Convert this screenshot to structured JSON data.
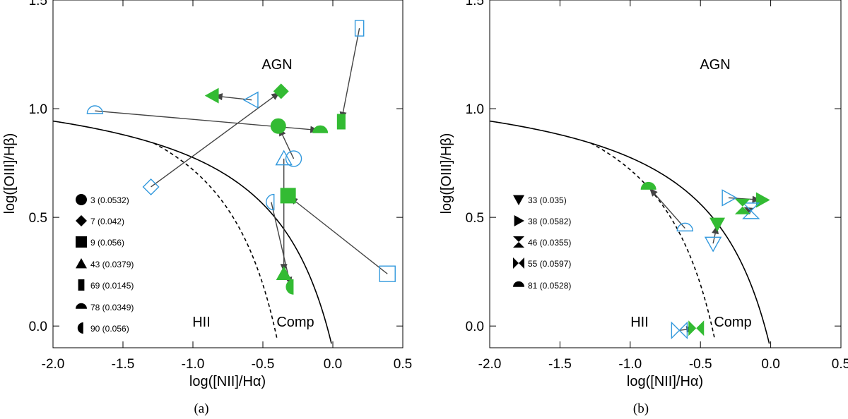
{
  "chart_data": [
    {
      "type": "scatter",
      "panel_label": "(a)",
      "xlabel": "log([NII]/Hα)",
      "ylabel": "log([OIII]/Hβ)",
      "xlim": [
        -2.0,
        0.5
      ],
      "ylim": [
        -0.1,
        1.5
      ],
      "xticks": [
        "-2.0",
        "-1.5",
        "-1.0",
        "-0.5",
        "0.0",
        "0.5"
      ],
      "yticks": [
        "0.0",
        "0.5",
        "1.0",
        "1.5"
      ],
      "region_labels": [
        "AGN",
        "HII",
        "Comp"
      ],
      "colors": {
        "from": "#3399dd",
        "to": "#33bb33",
        "arrow": "#444444"
      },
      "legend": [
        {
          "marker": "circle",
          "label": "3 (0.0532)"
        },
        {
          "marker": "diamond",
          "label": "7 (0.042)"
        },
        {
          "marker": "square",
          "label": "9 (0.056)"
        },
        {
          "marker": "triangle-up",
          "label": "43 (0.0379)"
        },
        {
          "marker": "rect-tall",
          "label": "69 (0.0145)"
        },
        {
          "marker": "half-top",
          "label": "78 (0.0349)"
        },
        {
          "marker": "half-left",
          "label": "90 (0.056)"
        }
      ],
      "objects": [
        {
          "id": "3",
          "marker": "circle",
          "from": [
            -0.28,
            0.77
          ],
          "to": [
            -0.39,
            0.92
          ]
        },
        {
          "id": "7",
          "marker": "diamond",
          "from": [
            -1.3,
            0.64
          ],
          "to": [
            -0.37,
            1.08
          ]
        },
        {
          "id": "9",
          "marker": "square",
          "from": [
            0.39,
            0.24
          ],
          "to": [
            -0.32,
            0.6
          ]
        },
        {
          "id": "43",
          "marker": "triangle-up",
          "from": [
            -0.35,
            0.77
          ],
          "to": [
            -0.35,
            0.24
          ]
        },
        {
          "id": "69",
          "marker": "rect-tall",
          "from": [
            0.19,
            1.37
          ],
          "to": [
            0.06,
            0.94
          ]
        },
        {
          "id": "78",
          "marker": "half-top",
          "from": [
            -1.7,
            0.99
          ],
          "to": [
            -0.09,
            0.9
          ]
        },
        {
          "id": "90",
          "marker": "half-left",
          "from": [
            -0.44,
            0.57
          ],
          "to": [
            -0.3,
            0.18
          ]
        },
        {
          "id": "extra",
          "marker": "triangle-left",
          "from": [
            -0.58,
            1.04
          ],
          "to": [
            -0.86,
            1.06
          ]
        }
      ]
    },
    {
      "type": "scatter",
      "panel_label": "(b)",
      "xlabel": "log([NII]/Hα)",
      "ylabel": "log([OIII]/Hβ)",
      "xlim": [
        -2.0,
        0.5
      ],
      "ylim": [
        -0.1,
        1.5
      ],
      "xticks": [
        "-2.0",
        "-1.5",
        "-1.0",
        "-0.5",
        "0.0",
        "0.5"
      ],
      "yticks": [
        "0.0",
        "0.5",
        "1.0",
        "1.5"
      ],
      "region_labels": [
        "AGN",
        "HII",
        "Comp"
      ],
      "colors": {
        "from": "#3399dd",
        "to": "#33bb33",
        "arrow": "#444444"
      },
      "legend": [
        {
          "marker": "triangle-down",
          "label": "33 (0.035)"
        },
        {
          "marker": "triangle-right",
          "label": "38 (0.0582)"
        },
        {
          "marker": "hourglass",
          "label": "46 (0.0355)"
        },
        {
          "marker": "bowtie",
          "label": "55 (0.0597)"
        },
        {
          "marker": "half-top",
          "label": "81 (0.0528)"
        }
      ],
      "objects": [
        {
          "id": "33",
          "marker": "triangle-down",
          "from": [
            -0.41,
            0.38
          ],
          "to": [
            -0.38,
            0.47
          ]
        },
        {
          "id": "38",
          "marker": "triangle-right",
          "from": [
            -0.3,
            0.59
          ],
          "to": [
            -0.06,
            0.58
          ]
        },
        {
          "id": "46",
          "marker": "hourglass",
          "from": [
            -0.14,
            0.53
          ],
          "to": [
            -0.2,
            0.55
          ]
        },
        {
          "id": "55",
          "marker": "bowtie",
          "from": [
            -0.65,
            -0.02
          ],
          "to": [
            -0.53,
            -0.01
          ]
        },
        {
          "id": "81",
          "marker": "half-top",
          "from": [
            -0.61,
            0.45
          ],
          "to": [
            -0.87,
            0.64
          ]
        }
      ]
    }
  ]
}
